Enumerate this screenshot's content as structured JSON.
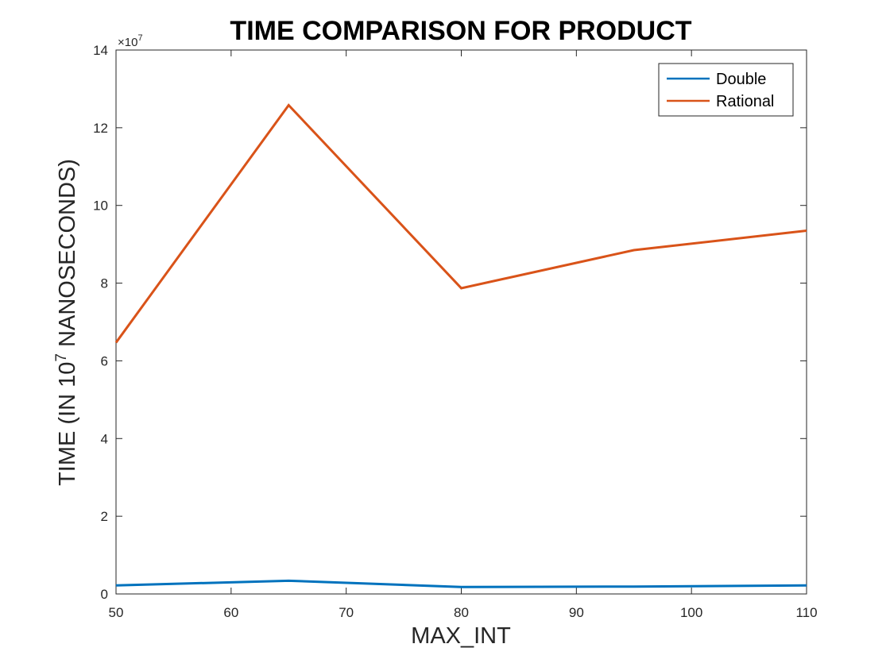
{
  "chart_data": {
    "type": "line",
    "title": "TIME COMPARISON FOR PRODUCT",
    "xlabel": "MAX_INT",
    "ylabel": {
      "prefix": "TIME (IN 10",
      "superscript": "7",
      "suffix": " NANOSECONDS)"
    },
    "y_exponent": {
      "prefix": "×10",
      "superscript": "7"
    },
    "xlim": [
      50,
      110
    ],
    "ylim": [
      0,
      14
    ],
    "xticks": [
      50,
      60,
      70,
      80,
      90,
      100,
      110
    ],
    "yticks": [
      0,
      2,
      4,
      6,
      8,
      10,
      12,
      14
    ],
    "x": [
      50,
      65,
      80,
      95,
      110
    ],
    "series": [
      {
        "name": "Double",
        "color": "#0072BD",
        "values": [
          0.22,
          0.34,
          0.18,
          0.19,
          0.22
        ]
      },
      {
        "name": "Rational",
        "color": "#D95319",
        "values": [
          6.47,
          12.58,
          7.87,
          8.85,
          9.35
        ]
      }
    ],
    "grid": false,
    "legend_position": "top-right"
  }
}
